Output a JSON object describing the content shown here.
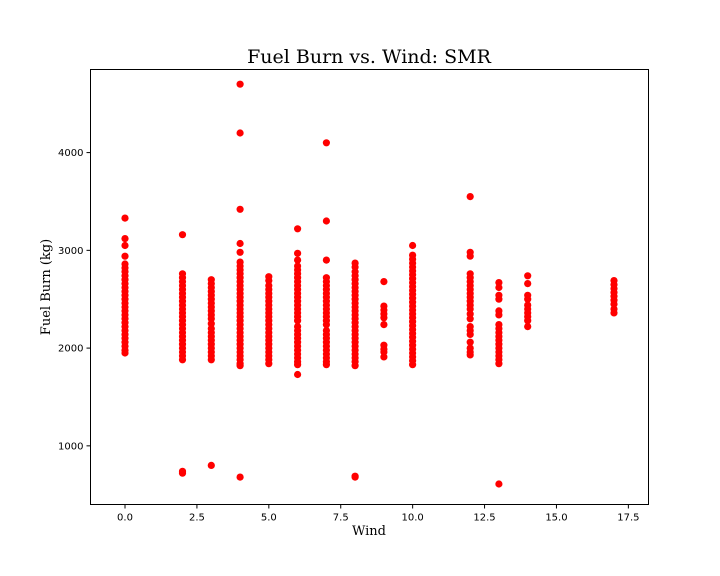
{
  "chart_data": {
    "type": "scatter",
    "title": "Fuel Burn vs. Wind: SMR",
    "xlabel": "Wind",
    "ylabel": "Fuel Burn (kg)",
    "xlim": [
      -1.2,
      18.2
    ],
    "ylim": [
      400,
      4850
    ],
    "x_ticks": [
      0.0,
      2.5,
      5.0,
      7.5,
      10.0,
      12.5,
      15.0,
      17.5
    ],
    "x_tick_labels": [
      "0.0",
      "2.5",
      "5.0",
      "7.5",
      "10.0",
      "12.5",
      "15.0",
      "17.5"
    ],
    "y_ticks": [
      1000,
      2000,
      3000,
      4000
    ],
    "y_tick_labels": [
      "1000",
      "2000",
      "3000",
      "4000"
    ],
    "grid": false,
    "marker_color": "#ff0000",
    "series": [
      {
        "points": [
          [
            0,
            3330
          ],
          [
            0,
            3120
          ],
          [
            0,
            3050
          ],
          [
            0,
            2940
          ],
          [
            0,
            2860
          ],
          [
            0,
            2820
          ],
          [
            0,
            2780
          ],
          [
            0,
            2740
          ],
          [
            0,
            2700
          ],
          [
            0,
            2660
          ],
          [
            0,
            2620
          ],
          [
            0,
            2580
          ],
          [
            0,
            2540
          ],
          [
            0,
            2500
          ],
          [
            0,
            2460
          ],
          [
            0,
            2420
          ],
          [
            0,
            2380
          ],
          [
            0,
            2340
          ],
          [
            0,
            2300
          ],
          [
            0,
            2260
          ],
          [
            0,
            2220
          ],
          [
            0,
            2180
          ],
          [
            0,
            2140
          ],
          [
            0,
            2100
          ],
          [
            0,
            2060
          ],
          [
            0,
            2020
          ],
          [
            0,
            1980
          ],
          [
            0,
            1950
          ],
          [
            2,
            3160
          ],
          [
            2,
            2760
          ],
          [
            2,
            2720
          ],
          [
            2,
            2680
          ],
          [
            2,
            2640
          ],
          [
            2,
            2600
          ],
          [
            2,
            2560
          ],
          [
            2,
            2520
          ],
          [
            2,
            2480
          ],
          [
            2,
            2440
          ],
          [
            2,
            2400
          ],
          [
            2,
            2360
          ],
          [
            2,
            2320
          ],
          [
            2,
            2280
          ],
          [
            2,
            2240
          ],
          [
            2,
            2200
          ],
          [
            2,
            2160
          ],
          [
            2,
            2120
          ],
          [
            2,
            2080
          ],
          [
            2,
            2040
          ],
          [
            2,
            2000
          ],
          [
            2,
            1960
          ],
          [
            2,
            1920
          ],
          [
            2,
            1880
          ],
          [
            2,
            740
          ],
          [
            2,
            720
          ],
          [
            3,
            2700
          ],
          [
            3,
            2660
          ],
          [
            3,
            2620
          ],
          [
            3,
            2580
          ],
          [
            3,
            2540
          ],
          [
            3,
            2500
          ],
          [
            3,
            2460
          ],
          [
            3,
            2420
          ],
          [
            3,
            2380
          ],
          [
            3,
            2340
          ],
          [
            3,
            2300
          ],
          [
            3,
            2250
          ],
          [
            3,
            2200
          ],
          [
            3,
            2160
          ],
          [
            3,
            2120
          ],
          [
            3,
            2080
          ],
          [
            3,
            2040
          ],
          [
            3,
            2000
          ],
          [
            3,
            1960
          ],
          [
            3,
            1920
          ],
          [
            3,
            1880
          ],
          [
            3,
            800
          ],
          [
            4,
            4700
          ],
          [
            4,
            4200
          ],
          [
            4,
            3420
          ],
          [
            4,
            3070
          ],
          [
            4,
            2980
          ],
          [
            4,
            2880
          ],
          [
            4,
            2840
          ],
          [
            4,
            2800
          ],
          [
            4,
            2760
          ],
          [
            4,
            2720
          ],
          [
            4,
            2680
          ],
          [
            4,
            2640
          ],
          [
            4,
            2600
          ],
          [
            4,
            2560
          ],
          [
            4,
            2520
          ],
          [
            4,
            2480
          ],
          [
            4,
            2440
          ],
          [
            4,
            2400
          ],
          [
            4,
            2360
          ],
          [
            4,
            2320
          ],
          [
            4,
            2280
          ],
          [
            4,
            2240
          ],
          [
            4,
            2200
          ],
          [
            4,
            2160
          ],
          [
            4,
            2120
          ],
          [
            4,
            2080
          ],
          [
            4,
            2040
          ],
          [
            4,
            2000
          ],
          [
            4,
            1960
          ],
          [
            4,
            1920
          ],
          [
            4,
            1880
          ],
          [
            4,
            1840
          ],
          [
            4,
            1820
          ],
          [
            4,
            680
          ],
          [
            5,
            2730
          ],
          [
            5,
            2690
          ],
          [
            5,
            2640
          ],
          [
            5,
            2600
          ],
          [
            5,
            2560
          ],
          [
            5,
            2520
          ],
          [
            5,
            2480
          ],
          [
            5,
            2440
          ],
          [
            5,
            2400
          ],
          [
            5,
            2360
          ],
          [
            5,
            2320
          ],
          [
            5,
            2280
          ],
          [
            5,
            2240
          ],
          [
            5,
            2200
          ],
          [
            5,
            2160
          ],
          [
            5,
            2120
          ],
          [
            5,
            2080
          ],
          [
            5,
            2040
          ],
          [
            5,
            2000
          ],
          [
            5,
            1960
          ],
          [
            5,
            1920
          ],
          [
            5,
            1880
          ],
          [
            5,
            1840
          ],
          [
            6,
            3220
          ],
          [
            6,
            2970
          ],
          [
            6,
            2900
          ],
          [
            6,
            2840
          ],
          [
            6,
            2800
          ],
          [
            6,
            2760
          ],
          [
            6,
            2720
          ],
          [
            6,
            2680
          ],
          [
            6,
            2640
          ],
          [
            6,
            2600
          ],
          [
            6,
            2560
          ],
          [
            6,
            2520
          ],
          [
            6,
            2480
          ],
          [
            6,
            2440
          ],
          [
            6,
            2400
          ],
          [
            6,
            2360
          ],
          [
            6,
            2320
          ],
          [
            6,
            2280
          ],
          [
            6,
            2220
          ],
          [
            6,
            2180
          ],
          [
            6,
            2140
          ],
          [
            6,
            2100
          ],
          [
            6,
            2060
          ],
          [
            6,
            2020
          ],
          [
            6,
            1980
          ],
          [
            6,
            1940
          ],
          [
            6,
            1900
          ],
          [
            6,
            1860
          ],
          [
            6,
            1830
          ],
          [
            6,
            1730
          ],
          [
            7,
            4100
          ],
          [
            7,
            3300
          ],
          [
            7,
            2900
          ],
          [
            7,
            2720
          ],
          [
            7,
            2680
          ],
          [
            7,
            2640
          ],
          [
            7,
            2600
          ],
          [
            7,
            2560
          ],
          [
            7,
            2520
          ],
          [
            7,
            2480
          ],
          [
            7,
            2440
          ],
          [
            7,
            2400
          ],
          [
            7,
            2360
          ],
          [
            7,
            2320
          ],
          [
            7,
            2280
          ],
          [
            7,
            2240
          ],
          [
            7,
            2180
          ],
          [
            7,
            2140
          ],
          [
            7,
            2100
          ],
          [
            7,
            2060
          ],
          [
            7,
            2020
          ],
          [
            7,
            1980
          ],
          [
            7,
            1940
          ],
          [
            7,
            1900
          ],
          [
            7,
            1860
          ],
          [
            7,
            1830
          ],
          [
            8,
            2870
          ],
          [
            8,
            2830
          ],
          [
            8,
            2780
          ],
          [
            8,
            2740
          ],
          [
            8,
            2700
          ],
          [
            8,
            2660
          ],
          [
            8,
            2620
          ],
          [
            8,
            2580
          ],
          [
            8,
            2540
          ],
          [
            8,
            2500
          ],
          [
            8,
            2460
          ],
          [
            8,
            2420
          ],
          [
            8,
            2380
          ],
          [
            8,
            2340
          ],
          [
            8,
            2300
          ],
          [
            8,
            2260
          ],
          [
            8,
            2220
          ],
          [
            8,
            2180
          ],
          [
            8,
            2140
          ],
          [
            8,
            2100
          ],
          [
            8,
            2060
          ],
          [
            8,
            2020
          ],
          [
            8,
            1980
          ],
          [
            8,
            1940
          ],
          [
            8,
            1900
          ],
          [
            8,
            1860
          ],
          [
            8,
            1820
          ],
          [
            8,
            690
          ],
          [
            8,
            680
          ],
          [
            9,
            2680
          ],
          [
            9,
            2430
          ],
          [
            9,
            2390
          ],
          [
            9,
            2350
          ],
          [
            9,
            2310
          ],
          [
            9,
            2240
          ],
          [
            9,
            2030
          ],
          [
            9,
            1990
          ],
          [
            9,
            1960
          ],
          [
            9,
            1910
          ],
          [
            10,
            3050
          ],
          [
            10,
            2950
          ],
          [
            10,
            2910
          ],
          [
            10,
            2870
          ],
          [
            10,
            2830
          ],
          [
            10,
            2790
          ],
          [
            10,
            2750
          ],
          [
            10,
            2710
          ],
          [
            10,
            2670
          ],
          [
            10,
            2630
          ],
          [
            10,
            2590
          ],
          [
            10,
            2550
          ],
          [
            10,
            2510
          ],
          [
            10,
            2470
          ],
          [
            10,
            2430
          ],
          [
            10,
            2390
          ],
          [
            10,
            2350
          ],
          [
            10,
            2310
          ],
          [
            10,
            2270
          ],
          [
            10,
            2230
          ],
          [
            10,
            2190
          ],
          [
            10,
            2150
          ],
          [
            10,
            2110
          ],
          [
            10,
            2070
          ],
          [
            10,
            2030
          ],
          [
            10,
            1990
          ],
          [
            10,
            1950
          ],
          [
            10,
            1910
          ],
          [
            10,
            1870
          ],
          [
            10,
            1830
          ],
          [
            12,
            3550
          ],
          [
            12,
            2980
          ],
          [
            12,
            2940
          ],
          [
            12,
            2760
          ],
          [
            12,
            2720
          ],
          [
            12,
            2680
          ],
          [
            12,
            2640
          ],
          [
            12,
            2600
          ],
          [
            12,
            2560
          ],
          [
            12,
            2520
          ],
          [
            12,
            2480
          ],
          [
            12,
            2440
          ],
          [
            12,
            2400
          ],
          [
            12,
            2350
          ],
          [
            12,
            2300
          ],
          [
            12,
            2220
          ],
          [
            12,
            2180
          ],
          [
            12,
            2140
          ],
          [
            12,
            2060
          ],
          [
            12,
            2000
          ],
          [
            12,
            1960
          ],
          [
            12,
            1930
          ],
          [
            13,
            2670
          ],
          [
            13,
            2620
          ],
          [
            13,
            2540
          ],
          [
            13,
            2500
          ],
          [
            13,
            2380
          ],
          [
            13,
            2340
          ],
          [
            13,
            2240
          ],
          [
            13,
            2200
          ],
          [
            13,
            2160
          ],
          [
            13,
            2120
          ],
          [
            13,
            2080
          ],
          [
            13,
            2040
          ],
          [
            13,
            2000
          ],
          [
            13,
            1960
          ],
          [
            13,
            1920
          ],
          [
            13,
            1880
          ],
          [
            13,
            1840
          ],
          [
            13,
            610
          ],
          [
            14,
            2740
          ],
          [
            14,
            2660
          ],
          [
            14,
            2540
          ],
          [
            14,
            2500
          ],
          [
            14,
            2440
          ],
          [
            14,
            2400
          ],
          [
            14,
            2360
          ],
          [
            14,
            2320
          ],
          [
            14,
            2280
          ],
          [
            14,
            2220
          ],
          [
            17,
            2690
          ],
          [
            17,
            2650
          ],
          [
            17,
            2610
          ],
          [
            17,
            2570
          ],
          [
            17,
            2530
          ],
          [
            17,
            2490
          ],
          [
            17,
            2450
          ],
          [
            17,
            2400
          ],
          [
            17,
            2360
          ]
        ]
      }
    ]
  }
}
